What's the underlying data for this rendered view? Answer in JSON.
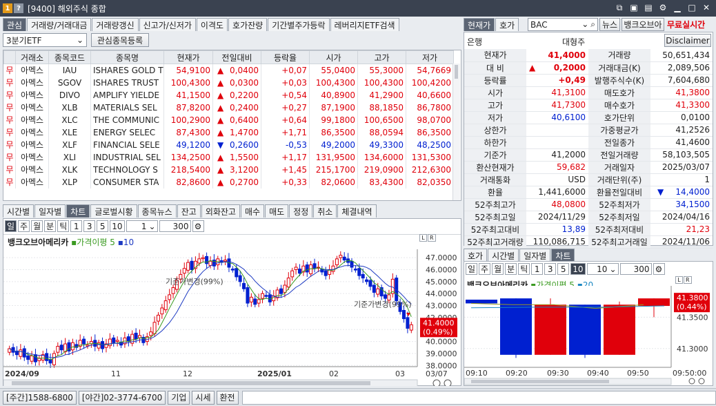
{
  "window": {
    "code": "1",
    "help": "?",
    "title": "[9400] 해외주식 종합"
  },
  "left": {
    "tabs": [
      "관심",
      "거래량/거래대금",
      "거래량갱신",
      "신고가/신저가",
      "이격도",
      "호가잔량",
      "기간별주가등락",
      "레버리지ETF검색"
    ],
    "group_select": "3분기ETF",
    "register_button": "관심종목등록",
    "columns": [
      "거래소",
      "종목코드",
      "종목명",
      "현재가",
      "전일대비",
      "등락율",
      "시가",
      "고가",
      "저가"
    ],
    "rows": [
      {
        "flag": "무",
        "ex": "아멕스",
        "code": "IAU",
        "name": "ISHARES GOLD T",
        "price": "54,9100",
        "arrow": "▲",
        "chg": "0,0400",
        "rate": "+0,07",
        "open": "55,0400",
        "high": "55,3000",
        "low": "54,7669",
        "dir": "up"
      },
      {
        "flag": "무",
        "ex": "아멕스",
        "code": "SGOV",
        "name": "ISHARES TRUST",
        "price": "100,4300",
        "arrow": "▲",
        "chg": "0,0300",
        "rate": "+0,03",
        "open": "100,4300",
        "high": "100,4300",
        "low": "100,4200",
        "dir": "up"
      },
      {
        "flag": "무",
        "ex": "아멕스",
        "code": "DIVO",
        "name": "AMPLIFY YIELDE",
        "price": "41,1500",
        "arrow": "▲",
        "chg": "0,2200",
        "rate": "+0,54",
        "open": "40,8900",
        "high": "41,2900",
        "low": "40,6600",
        "dir": "up"
      },
      {
        "flag": "무",
        "ex": "아멕스",
        "code": "XLB",
        "name": "MATERIALS SEL",
        "price": "87,8200",
        "arrow": "▲",
        "chg": "0,2400",
        "rate": "+0,27",
        "open": "87,1900",
        "high": "88,1850",
        "low": "86,7800",
        "dir": "up"
      },
      {
        "flag": "무",
        "ex": "아멕스",
        "code": "XLC",
        "name": "THE COMMUNIC",
        "price": "100,2900",
        "arrow": "▲",
        "chg": "0,6400",
        "rate": "+0,64",
        "open": "99,1800",
        "high": "100,6500",
        "low": "98,0700",
        "dir": "up"
      },
      {
        "flag": "무",
        "ex": "아멕스",
        "code": "XLE",
        "name": "ENERGY SELEC",
        "price": "87,4300",
        "arrow": "▲",
        "chg": "1,4700",
        "rate": "+1,71",
        "open": "86,3500",
        "high": "88,0594",
        "low": "86,3500",
        "dir": "up"
      },
      {
        "flag": "무",
        "ex": "아멕스",
        "code": "XLF",
        "name": "FINANCIAL SELE",
        "price": "49,1200",
        "arrow": "▼",
        "chg": "0,2600",
        "rate": "-0,53",
        "open": "49,2000",
        "high": "49,3300",
        "low": "48,2500",
        "dir": "down"
      },
      {
        "flag": "무",
        "ex": "아멕스",
        "code": "XLI",
        "name": "INDUSTRIAL SEL",
        "price": "134,2500",
        "arrow": "▲",
        "chg": "1,5500",
        "rate": "+1,17",
        "open": "131,9500",
        "high": "134,6000",
        "low": "131,5300",
        "dir": "up"
      },
      {
        "flag": "무",
        "ex": "아멕스",
        "code": "XLK",
        "name": "TECHNOLOGY S",
        "price": "218,5400",
        "arrow": "▲",
        "chg": "3,1200",
        "rate": "+1,45",
        "open": "215,1700",
        "high": "219,0900",
        "low": "212,6300",
        "dir": "up"
      },
      {
        "flag": "무",
        "ex": "아멕스",
        "code": "XLP",
        "name": "CONSUMER STA",
        "price": "82,8600",
        "arrow": "▲",
        "chg": "0,2700",
        "rate": "+0,33",
        "open": "82,0600",
        "high": "83,4300",
        "low": "82,0350",
        "dir": "up"
      }
    ],
    "chart_tabs": [
      "시간별",
      "일자별",
      "차트",
      "글로벌시황",
      "종목뉴스",
      "잔고",
      "외화잔고",
      "매수",
      "매도",
      "정정",
      "취소",
      "체결내역"
    ],
    "period_buttons": [
      "일",
      "주",
      "월",
      "분",
      "틱",
      "1",
      "3",
      "5",
      "10"
    ],
    "period_value": "1",
    "count_value": "300",
    "chart_legend": {
      "name": "뱅크오브아메리카",
      "ma_label": "가격이평",
      "ma1": "5",
      "ma2": "10"
    },
    "log_label": "L",
    "inv_label": "R"
  },
  "right": {
    "tabs": [
      "현재가",
      "호가"
    ],
    "symbol": "BAC",
    "nav": [
      "뉴스",
      "뱅크오브아"
    ],
    "free_live": "무료실시간",
    "sector_label": "은행",
    "size_label": "대형주",
    "disclaimer": "Disclaimer",
    "quote_rows": [
      {
        "l1": "현재가",
        "v1": "41,4000",
        "c1": "red",
        "a1": "",
        "l2": "거래량",
        "v2": "50,651,434",
        "c2": ""
      },
      {
        "l1": "대    비",
        "v1": "0,2000",
        "c1": "red",
        "a1": "▲",
        "l2": "거래대금(K)",
        "v2": "2,089,506",
        "c2": ""
      },
      {
        "l1": "등락률",
        "v1": "+0,49",
        "c1": "red",
        "a1": "",
        "l2": "발행주식수(K)",
        "v2": "7,604,680",
        "c2": ""
      },
      {
        "l1": "시가",
        "v1": "41,3100",
        "c1": "red",
        "a1": "",
        "l2": "매도호가",
        "v2": "41,3800",
        "c2": "red"
      },
      {
        "l1": "고가",
        "v1": "41,7300",
        "c1": "red",
        "a1": "",
        "l2": "매수호가",
        "v2": "41,3300",
        "c2": "red"
      },
      {
        "l1": "저가",
        "v1": "40,6100",
        "c1": "blue",
        "a1": "",
        "l2": "호가단위",
        "v2": "0,0100",
        "c2": ""
      },
      {
        "l1": "상한가",
        "v1": "",
        "c1": "",
        "a1": "",
        "l2": "가중평균가",
        "v2": "41,2526",
        "c2": ""
      },
      {
        "l1": "하한가",
        "v1": "",
        "c1": "",
        "a1": "",
        "l2": "전일종가",
        "v2": "41,4600",
        "c2": ""
      },
      {
        "l1": "기준가",
        "v1": "41,2000",
        "c1": "",
        "a1": "",
        "l2": "전일거래량",
        "v2": "58,103,505",
        "c2": ""
      },
      {
        "l1": "환산현재가",
        "v1": "59,682",
        "c1": "red",
        "a1": "",
        "l2": "거래일자",
        "v2": "2025/03/07",
        "c2": ""
      },
      {
        "l1": "거래통화",
        "v1": "USD",
        "c1": "",
        "a1": "",
        "l2": "거래단위(주)",
        "v2": "1",
        "c2": ""
      },
      {
        "l1": "환율",
        "v1": "1,441,6000",
        "c1": "",
        "a1": "",
        "l2": "환율전일대비",
        "v2": "14,4000",
        "c2": "blue"
      },
      {
        "l1": "52주최고가",
        "v1": "48,0800",
        "c1": "red",
        "a1": "",
        "l2": "52주최저가",
        "v2": "34,1500",
        "c2": "blue"
      },
      {
        "l1": "52주최고일",
        "v1": "2024/11/29",
        "c1": "",
        "a1": "",
        "l2": "52주최저일",
        "v2": "2024/04/16",
        "c2": ""
      },
      {
        "l1": "52주최고대비",
        "v1": "13,89",
        "c1": "blue",
        "a1": "",
        "l2": "52주최저대비",
        "v2": "21,23",
        "c2": "red"
      },
      {
        "l1": "52주최고거래량",
        "v1": "110,086,715",
        "c1": "",
        "a1": "",
        "l2": "52주최고거래일",
        "v2": "2024/11/06",
        "c2": ""
      }
    ],
    "bottom_tabs": [
      "호가",
      "시간별",
      "일자별",
      "차트"
    ],
    "period_buttons": [
      "일",
      "주",
      "월",
      "분",
      "틱",
      "1",
      "3",
      "5",
      "10"
    ],
    "period_value": "10",
    "count_value": "300",
    "chart_legend": {
      "name": "뱅크오브아메리카",
      "ma_label": "가격이평",
      "ma1": "5",
      "ma2": "20"
    },
    "log_label": "L",
    "inv_label": "R"
  },
  "status": {
    "day_label": "[주간]1588-6800",
    "night_label": "[야간]02-3774-6700",
    "b1": "기업",
    "b2": "시세",
    "b3": "환전"
  },
  "chart_data": [
    {
      "type": "candlestick",
      "name": "뱅크오브아메리카 일봉",
      "x_ticks": [
        "2024/09",
        "11",
        "12",
        "2025/01",
        "02",
        "03",
        "03/07"
      ],
      "y_ticks": [
        "47.0000",
        "46.0000",
        "45.0000",
        "44.0000",
        "43.0000",
        "42.0000",
        "41.0000",
        "40.0000",
        "39.0000",
        "38.0000"
      ],
      "ylim": [
        37.9,
        47.7
      ],
      "last_value": "41.4000",
      "last_rate": "(0.49%)",
      "annotations": [
        "기준가변경(99%)",
        "기준가변경(99%)"
      ],
      "closes": [
        39.4,
        39.1,
        38.9,
        39.3,
        38.7,
        38.5,
        38.8,
        38.3,
        38.6,
        38.9,
        38.4,
        38.2,
        39.0,
        39.6,
        39.3,
        39.8,
        39.2,
        39.9,
        39.5,
        40.1,
        39.8,
        39.7,
        40.0,
        39.6,
        39.9,
        39.4,
        39.8,
        40.2,
        39.9,
        40.1,
        39.7,
        40.3,
        40.0,
        40.6,
        40.2,
        40.5,
        39.9,
        40.4,
        40.8,
        41.6,
        42.2,
        42.8,
        43.4,
        43.9,
        44.5,
        45.1,
        45.6,
        46.1,
        46.6,
        46.0,
        46.7,
        46.9,
        47.0,
        46.5,
        46.7,
        46.3,
        46.9,
        46.6,
        46.8,
        46.2,
        46.0,
        45.4,
        45.0,
        44.4,
        43.2,
        43.7,
        43.1,
        43.5,
        44.0,
        43.8,
        43.3,
        43.8,
        44.3,
        44.0,
        44.7,
        45.3,
        45.9,
        46.2,
        45.7,
        46.3,
        45.8,
        46.4,
        46.1,
        46.2,
        45.8,
        45.5,
        46.0,
        46.3,
        46.9,
        47.2,
        46.8,
        46.6,
        46.2,
        46.0,
        45.5,
        45.3,
        45.0,
        44.6,
        44.1,
        44.4,
        43.8,
        43.6,
        43.9,
        45.2,
        43.4,
        42.5,
        41.9,
        41.1,
        41.4
      ]
    },
    {
      "type": "candlestick",
      "name": "뱅크오브아메리카 10분봉",
      "x_ticks": [
        "09:10",
        "09:20",
        "09:30",
        "09:40",
        "09:50",
        "09:50:00"
      ],
      "y_ticks": [
        "41.3500",
        "41.3000"
      ],
      "ylim": [
        41.27,
        41.4
      ],
      "last_value": "41.3800",
      "last_rate": "(0.44%)",
      "bars": [
        {
          "o": 41.378,
          "c": 41.372,
          "h": 41.378,
          "l": 41.372
        },
        {
          "o": 41.38,
          "c": 41.29,
          "h": 41.38,
          "l": 41.285
        },
        {
          "o": 41.29,
          "c": 41.37,
          "h": 41.38,
          "l": 41.29
        },
        {
          "o": 41.37,
          "c": 41.29,
          "h": 41.37,
          "l": 41.285
        },
        {
          "o": 41.29,
          "c": 41.37,
          "h": 41.375,
          "l": 41.29
        },
        {
          "o": 41.368,
          "c": 41.38,
          "h": 41.38,
          "l": 41.35
        }
      ]
    }
  ]
}
